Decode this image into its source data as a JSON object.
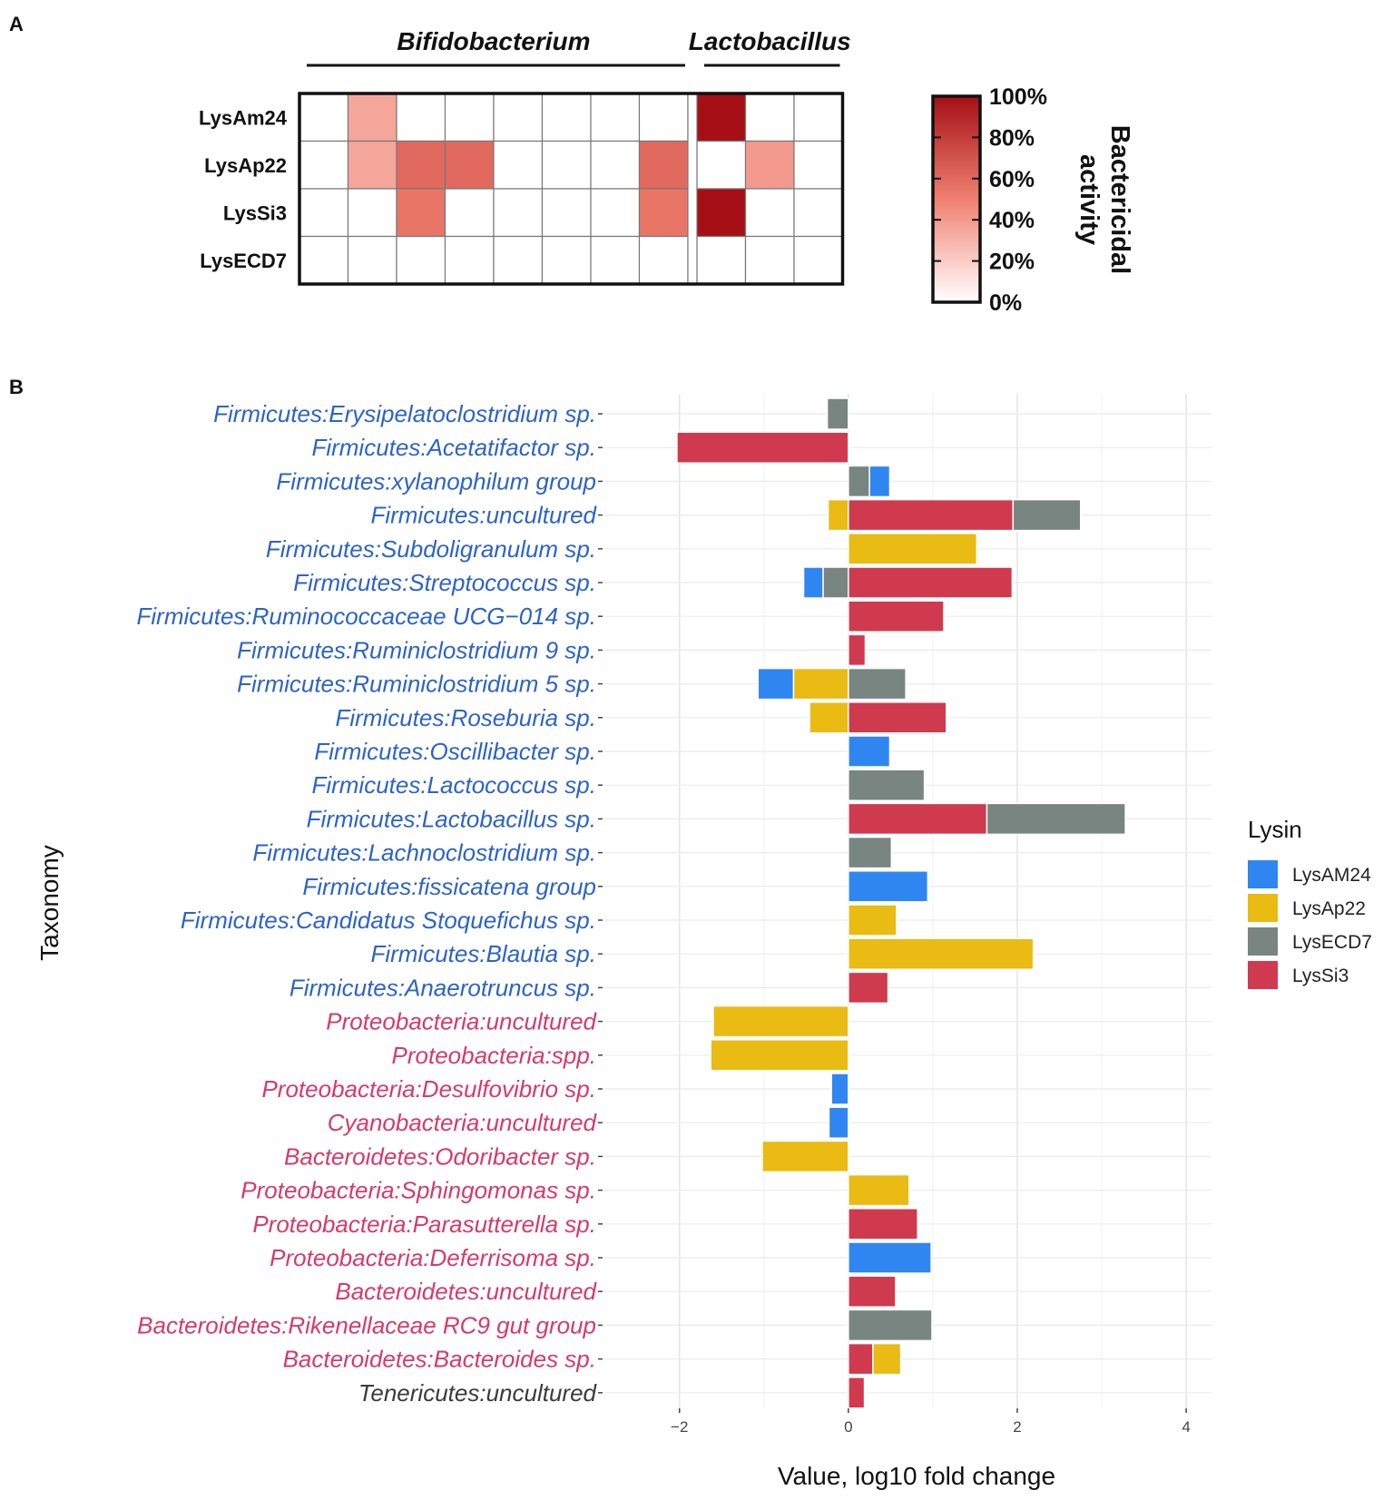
{
  "figure": {
    "panel_a_letter": "A",
    "panel_b_letter": "B"
  },
  "chart_data": [
    {
      "type": "heatmap",
      "panel": "A",
      "groups": [
        {
          "name": "Bifidobacterium",
          "columns": 8
        },
        {
          "name": "Lactobacillus",
          "columns": 3
        }
      ],
      "rows": [
        "LysAm24",
        "LysAp22",
        "LysSi3",
        "LysECD7"
      ],
      "values": [
        [
          0,
          35,
          0,
          0,
          0,
          0,
          0,
          0,
          100,
          0,
          0
        ],
        [
          0,
          35,
          60,
          60,
          0,
          0,
          0,
          60,
          0,
          40,
          0
        ],
        [
          0,
          0,
          55,
          0,
          0,
          0,
          0,
          55,
          100,
          0,
          0
        ],
        [
          0,
          0,
          0,
          0,
          0,
          0,
          0,
          0,
          0,
          0,
          0
        ]
      ],
      "colorbar": {
        "title_lines": [
          "Bactericidal",
          "activity"
        ],
        "ticks": [
          "100%",
          "80%",
          "60%",
          "40%",
          "20%",
          "0%"
        ],
        "range": [
          0,
          100
        ],
        "low_color": "#ffffff",
        "high_color": "#a50f15"
      }
    },
    {
      "type": "bar",
      "panel": "B",
      "orientation": "horizontal",
      "stacked": true,
      "xlabel": "Value, log10 fold change",
      "ylabel": "Taxonomy",
      "xlim": [
        -2.9,
        4.3
      ],
      "xticks": [
        -2,
        0,
        2,
        4
      ],
      "xtick_labels": [
        "−2",
        "0",
        "2",
        "4"
      ],
      "legend": {
        "title": "Lysin",
        "position": "right",
        "entries": [
          {
            "name": "LysAM24",
            "color": "#2f86f0"
          },
          {
            "name": "LysAp22",
            "color": "#e9bb13"
          },
          {
            "name": "LysECD7",
            "color": "#788581"
          },
          {
            "name": "LysSi3",
            "color": "#cf3a4e"
          }
        ]
      },
      "categories": [
        {
          "label": "Firmicutes:Erysipelatoclostridium sp.",
          "color": "#2c63c9",
          "segments": [
            {
              "lysin": "LysECD7",
              "value": -0.25
            }
          ]
        },
        {
          "label": "Firmicutes:Acetatifactor sp.",
          "color": "#2c63c9",
          "segments": [
            {
              "lysin": "LysSi3",
              "value": -2.03
            }
          ]
        },
        {
          "label": "Firmicutes:xylanophilum group",
          "color": "#2c63c9",
          "segments": [
            {
              "lysin": "LysECD7",
              "value": 0.25
            },
            {
              "lysin": "LysAM24",
              "value": 0.24
            }
          ]
        },
        {
          "label": "Firmicutes:uncultured",
          "color": "#2c63c9",
          "segments": [
            {
              "lysin": "LysAp22",
              "value": -0.24
            },
            {
              "lysin": "LysSi3",
              "value": 1.95
            },
            {
              "lysin": "LysECD7",
              "value": 0.8
            }
          ]
        },
        {
          "label": "Firmicutes:Subdoligranulum sp.",
          "color": "#2c63c9",
          "segments": [
            {
              "lysin": "LysAp22",
              "value": 1.52
            }
          ]
        },
        {
          "label": "Firmicutes:Streptococcus sp.",
          "color": "#2c63c9",
          "segments": [
            {
              "lysin": "LysECD7",
              "value": -0.3
            },
            {
              "lysin": "LysAM24",
              "value": -0.23
            },
            {
              "lysin": "LysSi3",
              "value": 1.94
            }
          ]
        },
        {
          "label": "Firmicutes:Ruminococcaceae UCG−014 sp.",
          "color": "#2c63c9",
          "segments": [
            {
              "lysin": "LysSi3",
              "value": 1.13
            }
          ]
        },
        {
          "label": "Firmicutes:Ruminiclostridium 9 sp.",
          "color": "#2c63c9",
          "segments": [
            {
              "lysin": "LysSi3",
              "value": 0.2
            }
          ]
        },
        {
          "label": "Firmicutes:Ruminiclostridium 5 sp.",
          "color": "#2c63c9",
          "segments": [
            {
              "lysin": "LysAp22",
              "value": -0.65
            },
            {
              "lysin": "LysAM24",
              "value": -0.42
            },
            {
              "lysin": "LysECD7",
              "value": 0.68
            }
          ]
        },
        {
          "label": "Firmicutes:Roseburia sp.",
          "color": "#2c63c9",
          "segments": [
            {
              "lysin": "LysAp22",
              "value": -0.46
            },
            {
              "lysin": "LysSi3",
              "value": 1.16
            }
          ]
        },
        {
          "label": "Firmicutes:Oscillibacter sp.",
          "color": "#2c63c9",
          "segments": [
            {
              "lysin": "LysAM24",
              "value": 0.49
            }
          ]
        },
        {
          "label": "Firmicutes:Lactococcus sp.",
          "color": "#2c63c9",
          "segments": [
            {
              "lysin": "LysECD7",
              "value": 0.9
            }
          ]
        },
        {
          "label": "Firmicutes:Lactobacillus sp.",
          "color": "#2c63c9",
          "segments": [
            {
              "lysin": "LysSi3",
              "value": 1.64
            },
            {
              "lysin": "LysECD7",
              "value": 1.64
            }
          ]
        },
        {
          "label": "Firmicutes:Lachnoclostridium sp.",
          "color": "#2c63c9",
          "segments": [
            {
              "lysin": "LysECD7",
              "value": 0.51
            }
          ]
        },
        {
          "label": "Firmicutes:fissicatena group",
          "color": "#2c63c9",
          "segments": [
            {
              "lysin": "LysAM24",
              "value": 0.94
            }
          ]
        },
        {
          "label": "Firmicutes:Candidatus Stoquefichus sp.",
          "color": "#2c63c9",
          "segments": [
            {
              "lysin": "LysAp22",
              "value": 0.57
            }
          ]
        },
        {
          "label": "Firmicutes:Blautia sp.",
          "color": "#2c63c9",
          "segments": [
            {
              "lysin": "LysAp22",
              "value": 2.19
            }
          ]
        },
        {
          "label": "Firmicutes:Anaerotruncus sp.",
          "color": "#2c63c9",
          "segments": [
            {
              "lysin": "LysSi3",
              "value": 0.47
            }
          ]
        },
        {
          "label": "Proteobacteria:uncultured",
          "color": "#d63a6a",
          "segments": [
            {
              "lysin": "LysAp22",
              "value": -1.6
            }
          ]
        },
        {
          "label": "Proteobacteria:spp.",
          "color": "#d63a6a",
          "segments": [
            {
              "lysin": "LysAp22",
              "value": -1.63
            }
          ]
        },
        {
          "label": "Proteobacteria:Desulfovibrio sp.",
          "color": "#d63a6a",
          "segments": [
            {
              "lysin": "LysAM24",
              "value": -0.2
            }
          ]
        },
        {
          "label": "Cyanobacteria:uncultured",
          "color": "#d63a6a",
          "segments": [
            {
              "lysin": "LysAM24",
              "value": -0.23
            }
          ]
        },
        {
          "label": "Bacteroidetes:Odoribacter sp.",
          "color": "#d63a6a",
          "segments": [
            {
              "lysin": "LysAp22",
              "value": -1.02
            }
          ]
        },
        {
          "label": "Proteobacteria:Sphingomonas sp.",
          "color": "#d63a6a",
          "segments": [
            {
              "lysin": "LysAp22",
              "value": 0.72
            }
          ]
        },
        {
          "label": "Proteobacteria:Parasutterella sp.",
          "color": "#d63a6a",
          "segments": [
            {
              "lysin": "LysSi3",
              "value": 0.82
            }
          ]
        },
        {
          "label": "Proteobacteria:Deferrisoma sp.",
          "color": "#d63a6a",
          "segments": [
            {
              "lysin": "LysAM24",
              "value": 0.98
            }
          ]
        },
        {
          "label": "Bacteroidetes:uncultured",
          "color": "#d63a6a",
          "segments": [
            {
              "lysin": "LysSi3",
              "value": 0.56
            }
          ]
        },
        {
          "label": "Bacteroidetes:Rikenellaceae RC9 gut group",
          "color": "#d63a6a",
          "segments": [
            {
              "lysin": "LysECD7",
              "value": 0.99
            }
          ]
        },
        {
          "label": "Bacteroidetes:Bacteroides sp.",
          "color": "#d63a6a",
          "segments": [
            {
              "lysin": "LysSi3",
              "value": 0.29
            },
            {
              "lysin": "LysAp22",
              "value": 0.33
            }
          ]
        },
        {
          "label": "Tenericutes:uncultured",
          "color": "#3a3a3a",
          "segments": [
            {
              "lysin": "LysSi3",
              "value": 0.19
            }
          ]
        }
      ]
    }
  ]
}
